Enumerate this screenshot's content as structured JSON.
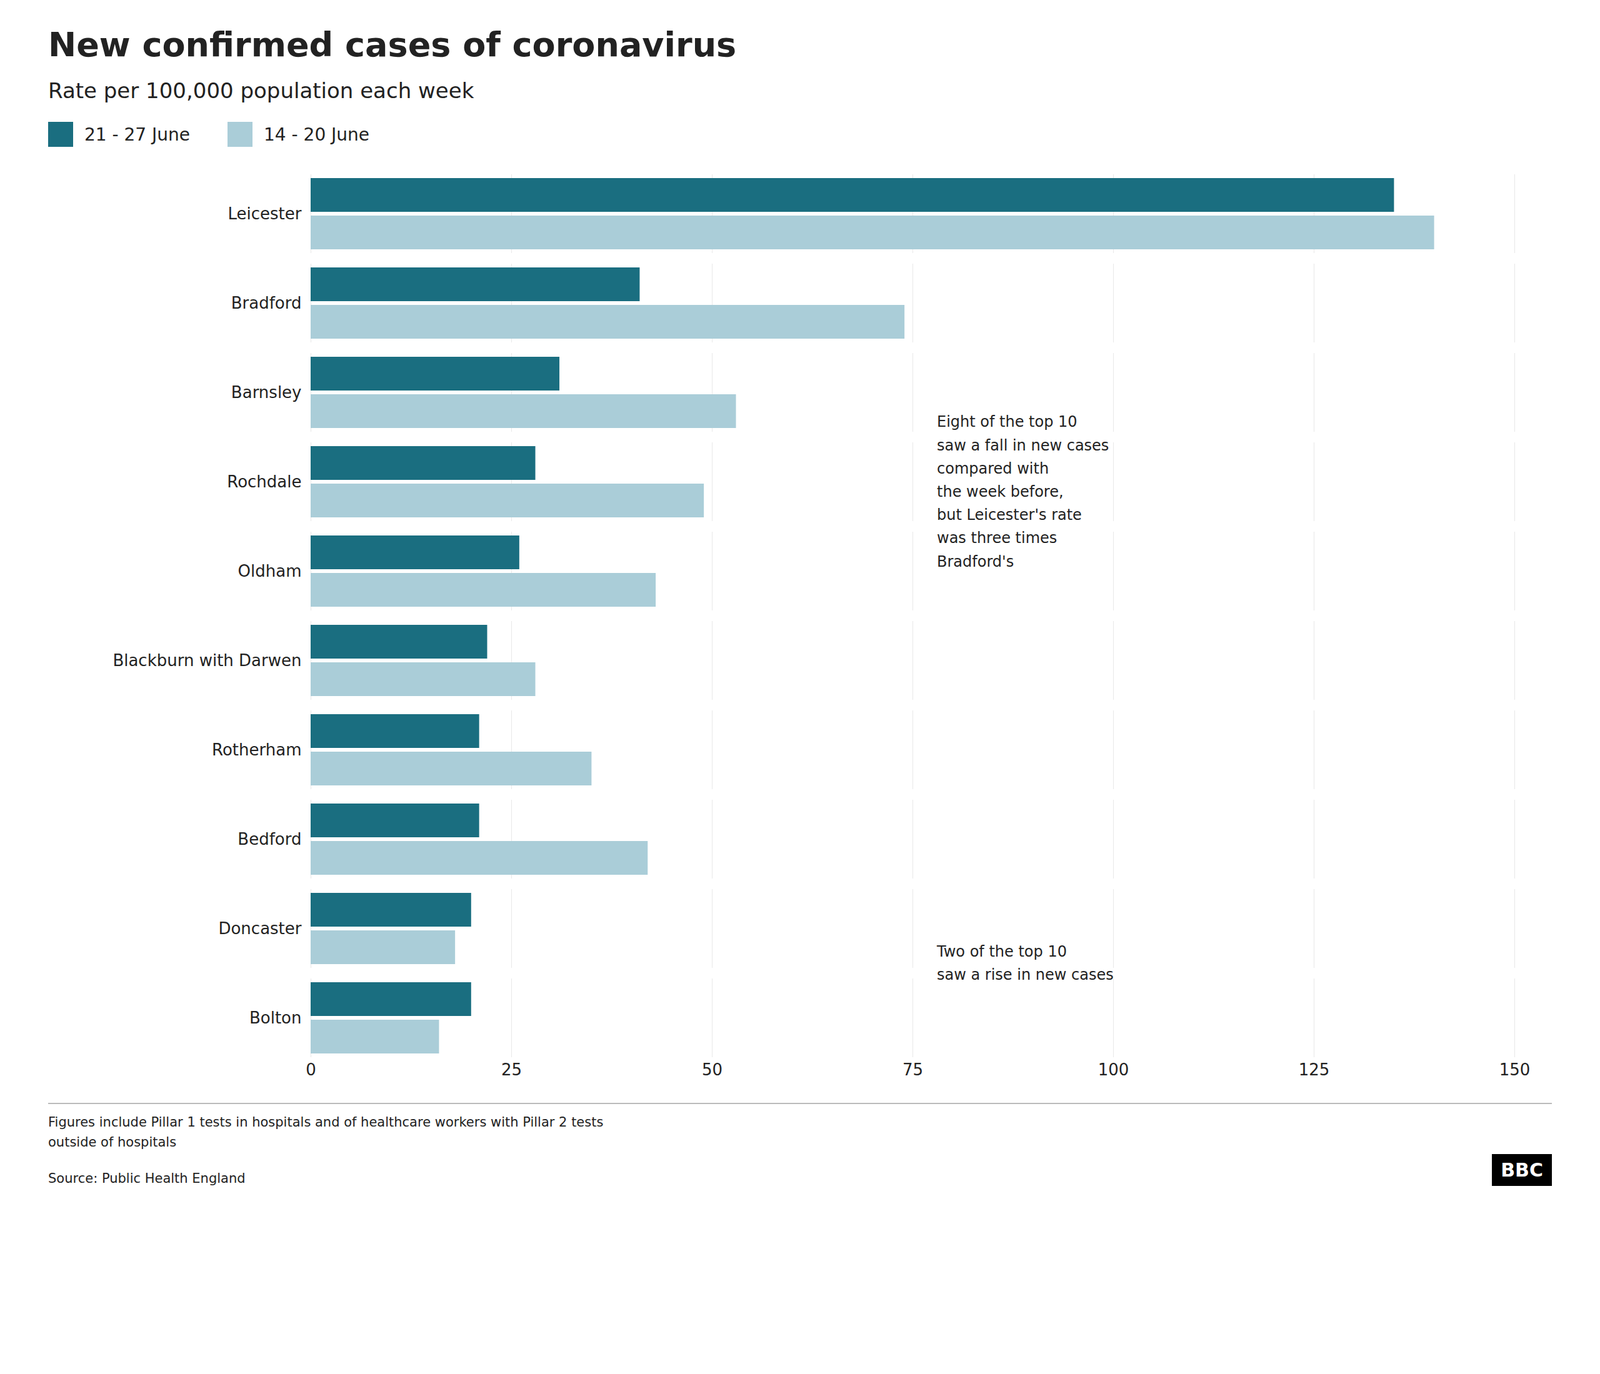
{
  "chart_data": {
    "type": "bar",
    "orientation": "horizontal",
    "title": "New confirmed cases of coronavirus",
    "subtitle": "Rate per 100,000 population each week",
    "categories": [
      "Leicester",
      "Bradford",
      "Barnsley",
      "Rochdale",
      "Oldham",
      "Blackburn with Darwen",
      "Rotherham",
      "Bedford",
      "Doncaster",
      "Bolton"
    ],
    "series": [
      {
        "name": "21 - 27 June",
        "color": "#1a6e80",
        "values": [
          135,
          41,
          31,
          28,
          26,
          22,
          21,
          21,
          20,
          20
        ]
      },
      {
        "name": "14 - 20 June",
        "color": "#aacdd8",
        "values": [
          140,
          74,
          53,
          49,
          43,
          28,
          35,
          42,
          18,
          16
        ]
      }
    ],
    "xlim": [
      0,
      150
    ],
    "xticks": [
      0,
      25,
      50,
      75,
      100,
      125,
      150
    ],
    "grid": true,
    "legend": "top",
    "annotations": [
      "Eight of the top 10\nsaw a fall in new cases\ncompared with\nthe week before,\nbut Leicester's rate\nwas three times\nBradford's",
      "Two of the top 10\nsaw a rise in new cases"
    ],
    "footnote": "Figures include Pillar 1 tests in hospitals and of healthcare workers with Pillar 2 tests\noutside of hospitals",
    "source": "Source: Public Health England",
    "logo": "BBC"
  }
}
